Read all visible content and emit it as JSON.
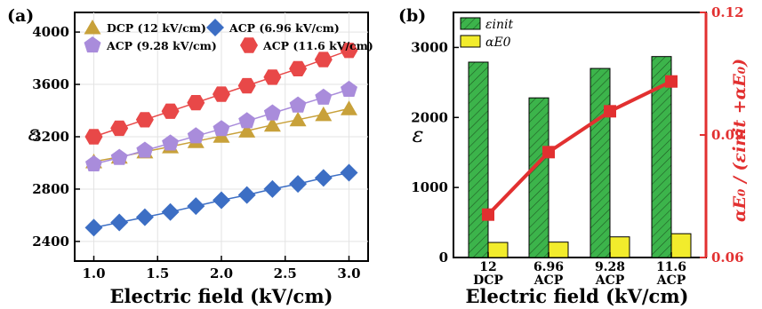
{
  "chart_data": [
    {
      "type": "scatter",
      "panel_label": "(a)",
      "xlabel": "Electric field (kV/cm)",
      "ylabel": "ε",
      "xlim": [
        0.85,
        3.15
      ],
      "ylim": [
        2250,
        4150
      ],
      "xticks": [
        "1.0",
        "1.5",
        "2.0",
        "2.5",
        "3.0"
      ],
      "yticks": [
        "2400",
        "2800",
        "3200",
        "3600",
        "4000"
      ],
      "x": [
        1.0,
        1.2,
        1.4,
        1.6,
        1.8,
        2.0,
        2.2,
        2.4,
        2.6,
        2.8,
        3.0
      ],
      "legend_position": "top",
      "series": [
        {
          "name": "DCP (12 kV/cm)",
          "marker": "triangle",
          "color": "#c8a13a",
          "values": [
            3010,
            3045,
            3085,
            3125,
            3165,
            3205,
            3245,
            3290,
            3330,
            3370,
            3415
          ]
        },
        {
          "name": "ACP (6.96 kV/cm)",
          "marker": "diamond",
          "color": "#3c6ec4",
          "values": [
            2505,
            2545,
            2585,
            2625,
            2670,
            2715,
            2755,
            2800,
            2840,
            2885,
            2925
          ]
        },
        {
          "name": "ACP (9.28 kV/cm)",
          "marker": "pentagon",
          "color": "#a98cdb",
          "values": [
            2990,
            3040,
            3095,
            3150,
            3205,
            3260,
            3320,
            3380,
            3440,
            3500,
            3560
          ]
        },
        {
          "name": "ACP (11.6 kV/cm)",
          "marker": "hexagon",
          "color": "#e84848",
          "values": [
            3200,
            3265,
            3330,
            3395,
            3460,
            3525,
            3590,
            3655,
            3720,
            3790,
            3860
          ]
        }
      ]
    },
    {
      "type": "bar",
      "panel_label": "(b)",
      "xlabel": "Electric field (kV/cm)",
      "ylabel": "ε",
      "y2label": "αE₀ / (εinit +αE₀)",
      "categories": [
        "12",
        "6.96",
        "9.28",
        "11.6"
      ],
      "category_sublabels": [
        "DCP",
        "ACP",
        "ACP",
        "ACP"
      ],
      "ylim": [
        0,
        3500
      ],
      "yticks": [
        "0",
        "1000",
        "2000",
        "3000"
      ],
      "y2lim": [
        0.06,
        0.12
      ],
      "y2ticks": [
        "0.06",
        "0.09",
        "0.12"
      ],
      "legend_position": "top-left",
      "series": [
        {
          "name": "εinit",
          "color": "#3cb44b",
          "hatch": true,
          "values": [
            2790,
            2280,
            2700,
            2870
          ]
        },
        {
          "name": "αE0",
          "color": "#f2ec2c",
          "values": [
            215,
            220,
            295,
            340
          ]
        }
      ],
      "ratio_series": {
        "color": "#e23030",
        "values": [
          0.0705,
          0.0858,
          0.0958,
          0.1031
        ]
      }
    }
  ]
}
